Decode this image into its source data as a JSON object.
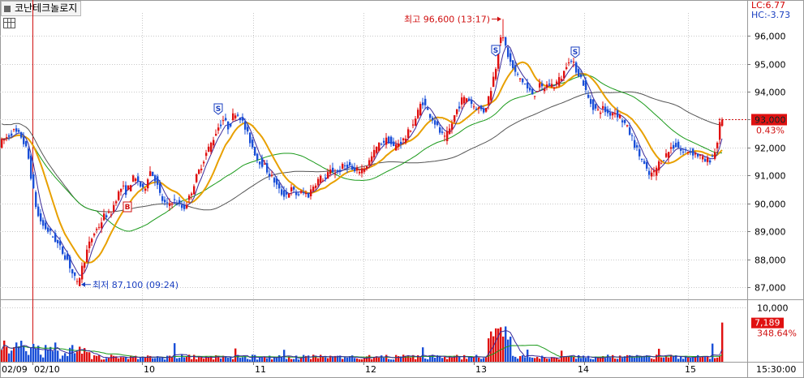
{
  "header": {
    "stock_name": "코난테크놀로지",
    "lc_label": "LC:6.77",
    "hc_label": "HC:-3.73"
  },
  "colors": {
    "up": "#e01010",
    "down": "#1a4fd8",
    "ma5": "#3a2a9a",
    "ma20": "#e8a000",
    "ma60": "#1a9a1a",
    "ma120": "#555555",
    "price_badge": "#e01010",
    "grid": "#c8c8c8"
  },
  "chart_data": [
    {
      "type": "candlestick",
      "title": "",
      "ylim": [
        86600,
        96700
      ],
      "yticks": [
        87000,
        88000,
        89000,
        90000,
        91000,
        92000,
        93000,
        94000,
        95000,
        96000
      ],
      "ytick_labels": [
        "87,000",
        "88,000",
        "89,000",
        "90,000",
        "91,000",
        "92,000",
        "93,000",
        "94,000",
        "95,000",
        "96,000"
      ],
      "x_categories": [
        "02/09",
        "02/10",
        "10",
        "11",
        "12",
        "13",
        "14",
        "15"
      ],
      "current_price": 93000,
      "current_price_label": "93,000",
      "change_label": "0.43%",
      "annotations": {
        "high": {
          "value": 96600,
          "label": "최고 96,600 (13:17)"
        },
        "low": {
          "value": 87100,
          "label": "최저 87,100 (09:24)"
        },
        "signals": [
          "S",
          "S",
          "S",
          "B"
        ]
      },
      "moving_averages": [
        "MA5",
        "MA20",
        "MA60",
        "MA120"
      ],
      "price_path": [
        [
          0,
          92100
        ],
        [
          8,
          92300
        ],
        [
          18,
          92600
        ],
        [
          28,
          92400
        ],
        [
          36,
          91800
        ],
        [
          42,
          90600
        ],
        [
          48,
          89600
        ],
        [
          55,
          89200
        ],
        [
          62,
          89000
        ],
        [
          70,
          88700
        ],
        [
          78,
          88300
        ],
        [
          85,
          88000
        ],
        [
          91,
          87500
        ],
        [
          97,
          87100
        ],
        [
          103,
          87700
        ],
        [
          110,
          88400
        ],
        [
          117,
          88900
        ],
        [
          124,
          89200
        ],
        [
          131,
          89600
        ],
        [
          138,
          89600
        ],
        [
          145,
          90200
        ],
        [
          152,
          90600
        ],
        [
          158,
          90400
        ],
        [
          165,
          90900
        ],
        [
          172,
          90800
        ],
        [
          179,
          90400
        ],
        [
          186,
          91200
        ],
        [
          193,
          90900
        ],
        [
          200,
          90200
        ],
        [
          207,
          89900
        ],
        [
          214,
          90100
        ],
        [
          221,
          90000
        ],
        [
          228,
          89800
        ],
        [
          235,
          90200
        ],
        [
          242,
          90800
        ],
        [
          249,
          91300
        ],
        [
          256,
          91800
        ],
        [
          263,
          92200
        ],
        [
          270,
          92700
        ],
        [
          277,
          93000
        ],
        [
          284,
          92700
        ],
        [
          291,
          93300
        ],
        [
          298,
          93100
        ],
        [
          305,
          92600
        ],
        [
          312,
          92100
        ],
        [
          319,
          91600
        ],
        [
          326,
          91400
        ],
        [
          333,
          91100
        ],
        [
          340,
          90800
        ],
        [
          347,
          90400
        ],
        [
          354,
          90300
        ],
        [
          361,
          90500
        ],
        [
          368,
          90300
        ],
        [
          375,
          90400
        ],
        [
          382,
          90300
        ],
        [
          389,
          90700
        ],
        [
          396,
          90900
        ],
        [
          403,
          90900
        ],
        [
          410,
          91200
        ],
        [
          417,
          91100
        ],
        [
          424,
          91300
        ],
        [
          431,
          91400
        ],
        [
          438,
          91100
        ],
        [
          445,
          91200
        ],
        [
          452,
          91300
        ],
        [
          459,
          91600
        ],
        [
          466,
          92000
        ],
        [
          473,
          92200
        ],
        [
          480,
          92300
        ],
        [
          487,
          92000
        ],
        [
          494,
          92200
        ],
        [
          501,
          92300
        ],
        [
          508,
          92700
        ],
        [
          515,
          93100
        ],
        [
          522,
          93700
        ],
        [
          529,
          93300
        ],
        [
          536,
          93000
        ],
        [
          543,
          92600
        ],
        [
          550,
          92300
        ],
        [
          557,
          92700
        ],
        [
          564,
          93300
        ],
        [
          571,
          93700
        ],
        [
          578,
          93800
        ],
        [
          585,
          93500
        ],
        [
          592,
          93400
        ],
        [
          599,
          93300
        ],
        [
          606,
          94000
        ],
        [
          613,
          94900
        ],
        [
          618,
          96100
        ],
        [
          624,
          95700
        ],
        [
          630,
          95100
        ],
        [
          636,
          94700
        ],
        [
          642,
          94500
        ],
        [
          648,
          94300
        ],
        [
          654,
          94000
        ],
        [
          660,
          93900
        ],
        [
          666,
          94200
        ],
        [
          672,
          94100
        ],
        [
          678,
          94300
        ],
        [
          684,
          94200
        ],
        [
          690,
          94400
        ],
        [
          696,
          94600
        ],
        [
          702,
          95200
        ],
        [
          708,
          95000
        ],
        [
          714,
          94700
        ],
        [
          720,
          94400
        ],
        [
          726,
          93800
        ],
        [
          732,
          93500
        ],
        [
          738,
          93300
        ],
        [
          745,
          93400
        ],
        [
          752,
          93200
        ],
        [
          759,
          93300
        ],
        [
          766,
          93100
        ],
        [
          773,
          92800
        ],
        [
          780,
          92400
        ],
        [
          787,
          91900
        ],
        [
          794,
          91500
        ],
        [
          801,
          91000
        ],
        [
          808,
          91100
        ],
        [
          815,
          91500
        ],
        [
          822,
          91700
        ],
        [
          829,
          92000
        ],
        [
          836,
          92100
        ],
        [
          843,
          91800
        ],
        [
          850,
          91900
        ],
        [
          857,
          91800
        ],
        [
          864,
          91700
        ],
        [
          871,
          91500
        ],
        [
          878,
          91600
        ],
        [
          884,
          91900
        ],
        [
          888,
          92600
        ],
        [
          890,
          93000
        ]
      ]
    },
    {
      "type": "bar",
      "title": "",
      "ylim": [
        0,
        11000
      ],
      "yticks": [
        10000
      ],
      "ytick_labels": [
        "10,000"
      ],
      "current_volume_label": "7,189",
      "volume_ratio_label": "348.64%",
      "x_tick_labels": [
        "02/09",
        "02/10",
        "10",
        "11",
        "12",
        "13",
        "14",
        "15",
        "15:30:00"
      ]
    }
  ]
}
